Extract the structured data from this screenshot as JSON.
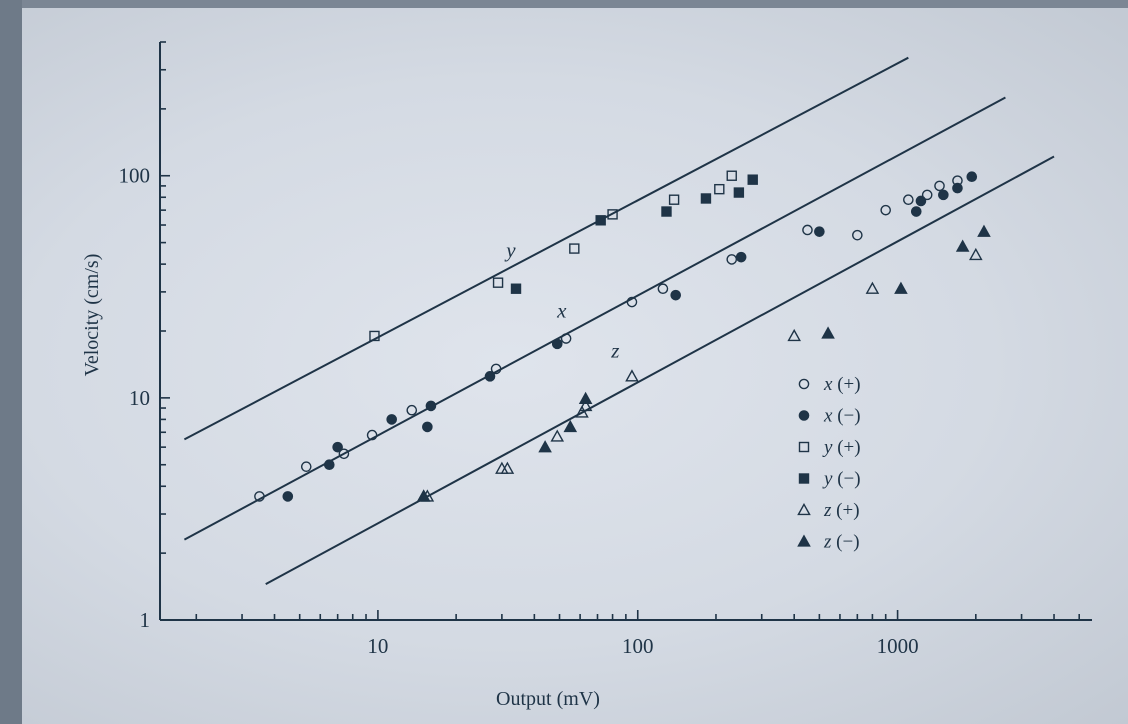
{
  "chart_data": {
    "type": "scatter",
    "xlabel": "Output (mV)",
    "ylabel": "Velocity (cm/s)",
    "xscale": "log",
    "yscale": "log",
    "xlim": [
      1.45,
      5600
    ],
    "ylim": [
      1,
      400
    ],
    "x_ticks": [
      10,
      100,
      1000
    ],
    "y_ticks": [
      1,
      10,
      100
    ],
    "grid": false,
    "legend_position": "right",
    "colors": {
      "ink": "#1f3447"
    },
    "series": [
      {
        "name": "x (+)",
        "marker": "circle-open",
        "points": [
          [
            3.5,
            3.6
          ],
          [
            5.3,
            4.9
          ],
          [
            7.4,
            5.6
          ],
          [
            9.5,
            6.8
          ],
          [
            13.5,
            8.8
          ],
          [
            28.5,
            13.5
          ],
          [
            53,
            18.5
          ],
          [
            95,
            27
          ],
          [
            125,
            31
          ],
          [
            230,
            42
          ],
          [
            450,
            57
          ],
          [
            700,
            54
          ],
          [
            900,
            70
          ],
          [
            1100,
            78
          ],
          [
            1300,
            82
          ],
          [
            1450,
            90
          ],
          [
            1700,
            95
          ]
        ]
      },
      {
        "name": "x (−)",
        "marker": "circle-filled",
        "points": [
          [
            4.5,
            3.6
          ],
          [
            6.5,
            5
          ],
          [
            7,
            6
          ],
          [
            11.3,
            8
          ],
          [
            15.5,
            7.4
          ],
          [
            16,
            9.2
          ],
          [
            27,
            12.5
          ],
          [
            49,
            17.5
          ],
          [
            140,
            29
          ],
          [
            250,
            43
          ],
          [
            500,
            56
          ],
          [
            1180,
            69
          ],
          [
            1230,
            77
          ],
          [
            1500,
            82
          ],
          [
            1700,
            88
          ],
          [
            1930,
            99
          ]
        ]
      },
      {
        "name": "y (+)",
        "marker": "square-open",
        "points": [
          [
            9.7,
            19
          ],
          [
            29,
            33
          ],
          [
            57,
            47
          ],
          [
            80,
            67
          ],
          [
            138,
            78
          ],
          [
            206,
            87
          ],
          [
            230,
            100
          ]
        ]
      },
      {
        "name": "y (−)",
        "marker": "square-filled",
        "points": [
          [
            34,
            31
          ],
          [
            72,
            63
          ],
          [
            129,
            69
          ],
          [
            183,
            79
          ],
          [
            245,
            84
          ],
          [
            277,
            96
          ]
        ]
      },
      {
        "name": "z (+)",
        "marker": "triangle-open",
        "points": [
          [
            15,
            3.6
          ],
          [
            15.5,
            3.6
          ],
          [
            30,
            4.8
          ],
          [
            31.5,
            4.8
          ],
          [
            49,
            6.7
          ],
          [
            61,
            8.6
          ],
          [
            63,
            9.2
          ],
          [
            95,
            12.5
          ],
          [
            400,
            19
          ],
          [
            800,
            31
          ],
          [
            2000,
            44
          ]
        ]
      },
      {
        "name": "z (−)",
        "marker": "triangle-filled",
        "points": [
          [
            15,
            3.6
          ],
          [
            44,
            6
          ],
          [
            55,
            7.4
          ],
          [
            63,
            9.9
          ],
          [
            540,
            19.5
          ],
          [
            1030,
            31
          ],
          [
            1780,
            48
          ],
          [
            2150,
            56
          ]
        ]
      }
    ],
    "fit_lines": [
      {
        "label": "y",
        "x": [
          1.8,
          1100
        ],
        "y": [
          6.5,
          340
        ]
      },
      {
        "label": "x",
        "x": [
          1.8,
          2600
        ],
        "y": [
          2.3,
          225
        ]
      },
      {
        "label": "z",
        "x": [
          3.7,
          4000
        ],
        "y": [
          1.45,
          122
        ]
      }
    ],
    "curve_labels": [
      {
        "text": "y",
        "x": 32.5,
        "y": 43
      },
      {
        "text": "x",
        "x": 51,
        "y": 23
      },
      {
        "text": "z",
        "x": 82,
        "y": 15.2
      }
    ],
    "tick_labels": {
      "x": [
        "10",
        "100",
        "1000"
      ],
      "y": [
        "1",
        "10",
        "100"
      ]
    }
  },
  "legend": {
    "items": [
      {
        "var": "x",
        "sign": "(+)",
        "marker": "circle-open"
      },
      {
        "var": "x",
        "sign": "(−)",
        "marker": "circle-filled"
      },
      {
        "var": "y",
        "sign": "(+)",
        "marker": "square-open"
      },
      {
        "var": "y",
        "sign": "(−)",
        "marker": "square-filled"
      },
      {
        "var": "z",
        "sign": "(+)",
        "marker": "triangle-open"
      },
      {
        "var": "z",
        "sign": "(−)",
        "marker": "triangle-filled"
      }
    ]
  }
}
